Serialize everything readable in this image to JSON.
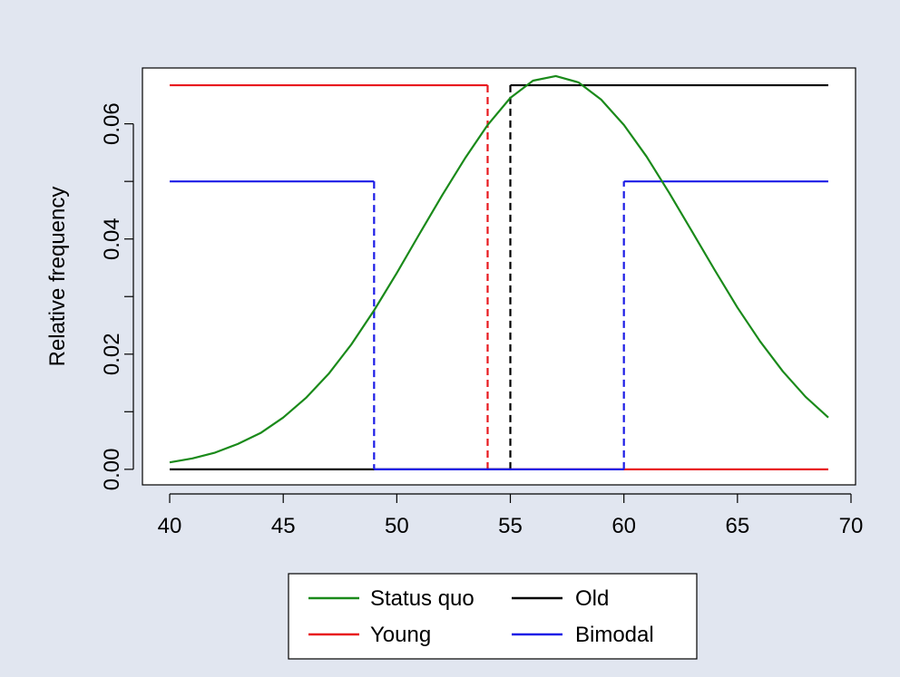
{
  "chart_data": {
    "type": "line",
    "title": "",
    "xlabel": "",
    "ylabel": "Relative frequency",
    "xlim": [
      38.8,
      70.2
    ],
    "ylim": [
      -0.0027,
      0.0697
    ],
    "x_ticks": [
      40,
      45,
      50,
      55,
      60,
      65,
      70
    ],
    "x_tick_labels": [
      "40",
      "45",
      "50",
      "55",
      "60",
      "65",
      "70"
    ],
    "y_ticks": [
      0,
      0.02,
      0.04,
      0.06
    ],
    "y_tick_labels": [
      "0.00",
      "0.02",
      "0.04",
      "0.06"
    ],
    "grid": false,
    "legend_position": "bottom-center",
    "series": [
      {
        "name": "Status quo",
        "color": "#1a8a1a",
        "style": "solid",
        "x": [
          40,
          41,
          42,
          43,
          44,
          45,
          46,
          47,
          48,
          49,
          50,
          51,
          52,
          53,
          54,
          55,
          56,
          57,
          58,
          59,
          60,
          61,
          62,
          63,
          64,
          65,
          66,
          67,
          68,
          69
        ],
        "y": [
          0.0012,
          0.0019,
          0.0029,
          0.0044,
          0.0063,
          0.009,
          0.0124,
          0.0166,
          0.0217,
          0.0276,
          0.0341,
          0.0409,
          0.0476,
          0.054,
          0.0598,
          0.0645,
          0.0675,
          0.0683,
          0.0672,
          0.0642,
          0.0598,
          0.0543,
          0.048,
          0.0413,
          0.0346,
          0.0281,
          0.0222,
          0.017,
          0.0126,
          0.009
        ]
      },
      {
        "name": "Young",
        "color": "#e8191e",
        "style": "step",
        "segments": [
          {
            "x": [
              40,
              54
            ],
            "y": [
              0.0667,
              0.0667
            ],
            "dash": false
          },
          {
            "x": [
              54,
              54
            ],
            "y": [
              0.0667,
              0
            ],
            "dash": true
          },
          {
            "x": [
              54,
              69
            ],
            "y": [
              0,
              0
            ],
            "dash": false
          }
        ]
      },
      {
        "name": "Old",
        "color": "#000000",
        "style": "step",
        "segments": [
          {
            "x": [
              40,
              55
            ],
            "y": [
              0,
              0
            ],
            "dash": false
          },
          {
            "x": [
              55,
              55
            ],
            "y": [
              0,
              0.0667
            ],
            "dash": true
          },
          {
            "x": [
              55,
              69
            ],
            "y": [
              0.0667,
              0.0667
            ],
            "dash": false
          }
        ]
      },
      {
        "name": "Bimodal",
        "color": "#1c1ce6",
        "style": "step",
        "segments": [
          {
            "x": [
              40,
              49
            ],
            "y": [
              0.05,
              0.05
            ],
            "dash": false
          },
          {
            "x": [
              49,
              49
            ],
            "y": [
              0.05,
              0
            ],
            "dash": true
          },
          {
            "x": [
              49,
              60
            ],
            "y": [
              0,
              0
            ],
            "dash": false
          },
          {
            "x": [
              60,
              60
            ],
            "y": [
              0,
              0.05
            ],
            "dash": true
          },
          {
            "x": [
              60,
              69
            ],
            "y": [
              0.05,
              0.05
            ],
            "dash": false
          }
        ]
      }
    ],
    "legend": {
      "entries": [
        {
          "label": "Status quo",
          "color": "#1a8a1a"
        },
        {
          "label": "Old",
          "color": "#000000"
        },
        {
          "label": "Young",
          "color": "#e8191e"
        },
        {
          "label": "Bimodal",
          "color": "#1c1ce6"
        }
      ]
    }
  }
}
